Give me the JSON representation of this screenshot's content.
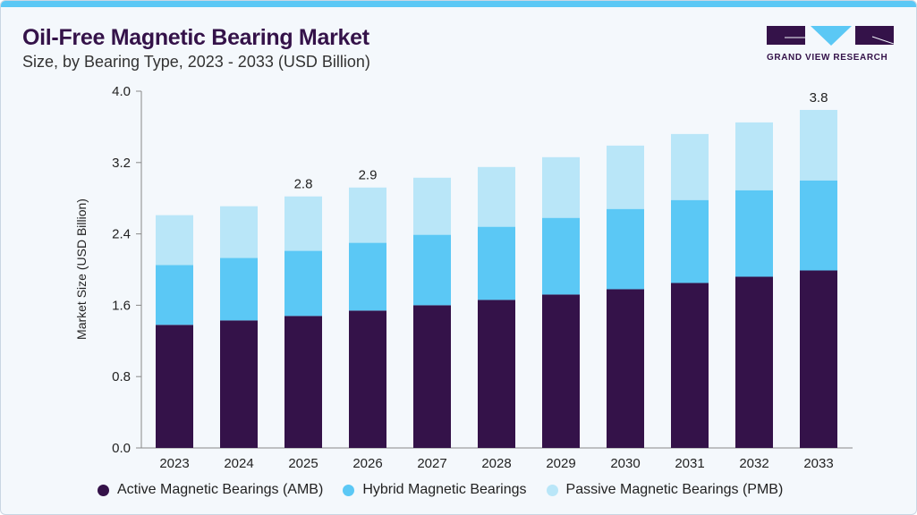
{
  "header": {
    "title": "Oil-Free Magnetic Bearing Market",
    "subtitle": "Size, by Bearing Type, 2023 - 2033 (USD Billion)"
  },
  "logo": {
    "text": "GRAND VIEW RESEARCH"
  },
  "chart_data": {
    "type": "bar",
    "stacked": true,
    "ylabel": "Market Size (USD Billion)",
    "xlabel": "",
    "ylim": [
      0,
      4.0
    ],
    "yticks": [
      "0.0",
      "0.8",
      "1.6",
      "2.4",
      "3.2",
      "4.0"
    ],
    "categories": [
      "2023",
      "2024",
      "2025",
      "2026",
      "2027",
      "2028",
      "2029",
      "2030",
      "2031",
      "2032",
      "2033"
    ],
    "series": [
      {
        "name": "Active Magnetic Bearings (AMB)",
        "color": "#341249",
        "values": [
          1.38,
          1.43,
          1.48,
          1.54,
          1.6,
          1.66,
          1.72,
          1.78,
          1.85,
          1.92,
          1.99
        ]
      },
      {
        "name": "Hybrid Magnetic Bearings",
        "color": "#5bc8f5",
        "values": [
          0.67,
          0.7,
          0.73,
          0.76,
          0.79,
          0.82,
          0.86,
          0.9,
          0.93,
          0.97,
          1.01
        ]
      },
      {
        "name": "Passive Magnetic Bearings (PMB)",
        "color": "#b9e6f8",
        "values": [
          0.56,
          0.58,
          0.61,
          0.62,
          0.64,
          0.67,
          0.68,
          0.71,
          0.74,
          0.76,
          0.79
        ]
      }
    ],
    "data_labels": [
      {
        "category": "2025",
        "text": "2.8"
      },
      {
        "category": "2026",
        "text": "2.9"
      },
      {
        "category": "2033",
        "text": "3.8"
      }
    ],
    "grid": false,
    "legend": "bottom"
  }
}
